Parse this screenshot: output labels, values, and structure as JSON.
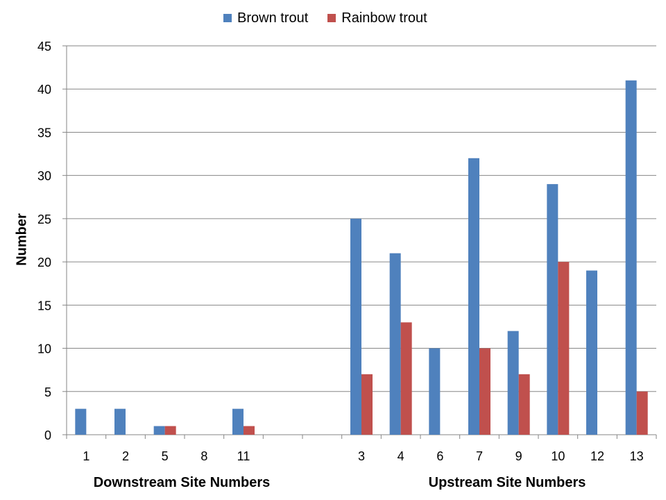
{
  "chart_data": {
    "type": "bar",
    "ylabel": "Number",
    "ylim": [
      0,
      45
    ],
    "ytick_step": 5,
    "grid": true,
    "legend_position": "top",
    "categories": [
      "1",
      "2",
      "5",
      "8",
      "11",
      "",
      "",
      "3",
      "4",
      "6",
      "7",
      "9",
      "10",
      "12",
      "13"
    ],
    "series": [
      {
        "name": "Brown trout",
        "color": "#4F81BD",
        "values": [
          3,
          3,
          1,
          0,
          3,
          null,
          null,
          25,
          21,
          10,
          32,
          12,
          29,
          19,
          41
        ]
      },
      {
        "name": "Rainbow trout",
        "color": "#C0504D",
        "values": [
          0,
          0,
          1,
          0,
          1,
          null,
          null,
          7,
          13,
          0,
          10,
          7,
          20,
          0,
          5
        ]
      }
    ],
    "group_labels": [
      "Downstream Site Numbers",
      "Upstream Site Numbers"
    ]
  }
}
